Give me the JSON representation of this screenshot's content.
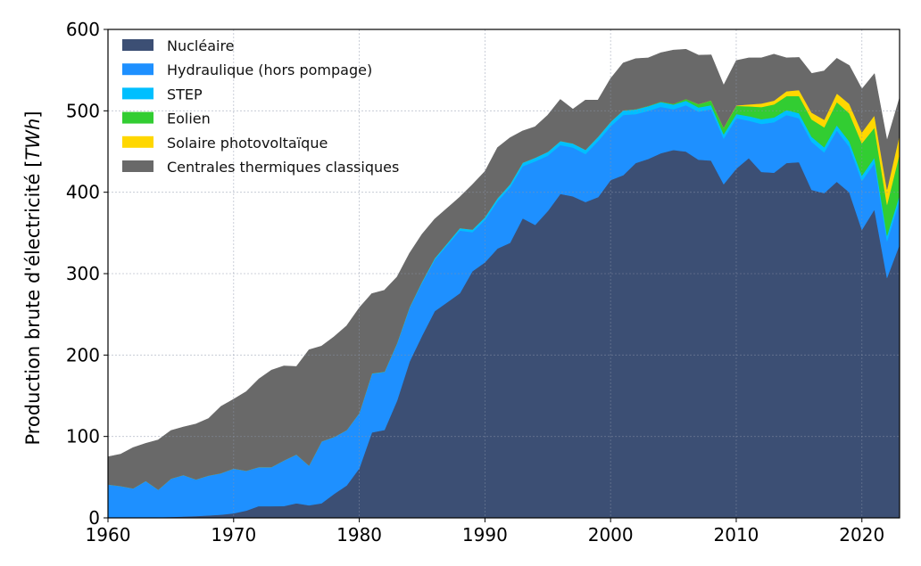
{
  "chart_data": {
    "type": "area",
    "stacked": true,
    "title": "",
    "xlabel": "",
    "ylabel": "Production brute d'électricité",
    "ylabel_unit": "TWh",
    "xlim": [
      1960,
      2023
    ],
    "ylim": [
      0,
      600
    ],
    "xticks": [
      1960,
      1970,
      1980,
      1990,
      2000,
      2010,
      2020
    ],
    "yticks": [
      0,
      100,
      200,
      300,
      400,
      500,
      600
    ],
    "grid": true,
    "legend_position": "top-left",
    "x": [
      1960,
      1961,
      1962,
      1963,
      1964,
      1965,
      1966,
      1967,
      1968,
      1969,
      1970,
      1971,
      1972,
      1973,
      1974,
      1975,
      1976,
      1977,
      1978,
      1979,
      1980,
      1981,
      1982,
      1983,
      1984,
      1985,
      1986,
      1987,
      1988,
      1989,
      1990,
      1991,
      1992,
      1993,
      1994,
      1995,
      1996,
      1997,
      1998,
      1999,
      2000,
      2001,
      2002,
      2003,
      2004,
      2005,
      2006,
      2007,
      2008,
      2009,
      2010,
      2011,
      2012,
      2013,
      2014,
      2015,
      2016,
      2017,
      2018,
      2019,
      2020,
      2021,
      2022,
      2023
    ],
    "series": [
      {
        "name": "Nucléaire",
        "color": "#3c4f74",
        "values": [
          0.1,
          0.2,
          0.3,
          0.5,
          0.8,
          1.2,
          1.7,
          2.3,
          3.0,
          4.0,
          5.7,
          9.0,
          14.5,
          14.4,
          14.6,
          18.0,
          15.5,
          18.0,
          29.5,
          40.0,
          61.0,
          105.0,
          108.0,
          144.0,
          192.0,
          224.0,
          254.0,
          265.0,
          276.0,
          303.0,
          314.0,
          331.0,
          338.0,
          368.0,
          360.0,
          377.0,
          398.0,
          395.0,
          388.0,
          394.0,
          415.0,
          421.0,
          436.0,
          441.0,
          448.0,
          452.0,
          450.0,
          440.0,
          439.0,
          410.0,
          429.0,
          442.0,
          425.0,
          424.0,
          436.0,
          437.0,
          403.0,
          399.0,
          413.0,
          400.0,
          354.0,
          379.0,
          295.0,
          336.0
        ]
      },
      {
        "name": "Hydraulique (hors pompage)",
        "color": "#1e90ff",
        "values": [
          41.0,
          39.0,
          36.0,
          45.0,
          34.0,
          47.0,
          51.0,
          45.0,
          49.0,
          51.0,
          55.0,
          49.0,
          48.0,
          48.0,
          56.0,
          60.0,
          49.0,
          76.0,
          70.0,
          68.0,
          68.0,
          72.0,
          71.0,
          70.0,
          66.0,
          65.0,
          63.0,
          70.0,
          77.0,
          48.0,
          52.0,
          58.0,
          68.0,
          64.0,
          78.0,
          68.0,
          60.0,
          60.0,
          59.0,
          69.0,
          66.0,
          74.0,
          60.0,
          59.0,
          57.0,
          50.0,
          57.0,
          59.0,
          63.0,
          56.0,
          62.0,
          46.0,
          59.0,
          62.0,
          59.0,
          54.0,
          59.0,
          50.0,
          63.0,
          56.0,
          60.0,
          57.0,
          45.0,
          54.0
        ]
      },
      {
        "name": "STEP",
        "color": "#00bfff",
        "values": [
          0,
          0,
          0,
          0,
          0,
          0,
          0,
          0,
          0,
          0,
          0,
          0,
          0,
          0,
          0,
          0,
          0,
          0,
          0,
          0,
          0,
          0.5,
          0.6,
          0.8,
          1.0,
          1.5,
          2.0,
          2.5,
          3.0,
          3.2,
          3.5,
          3.8,
          4.0,
          4.3,
          4.5,
          4.7,
          5.0,
          5.0,
          5.2,
          5.3,
          5.5,
          5.6,
          5.8,
          5.7,
          5.8,
          5.6,
          5.4,
          5.2,
          5.0,
          5.3,
          5.2,
          5.5,
          5.8,
          5.9,
          6.0,
          6.1,
          6.2,
          6.3,
          6.4,
          6.5,
          6.6,
          6.7,
          6.8,
          6.9
        ]
      },
      {
        "name": "Eolien",
        "color": "#32cd32",
        "values": [
          0,
          0,
          0,
          0,
          0,
          0,
          0,
          0,
          0,
          0,
          0,
          0,
          0,
          0,
          0,
          0,
          0,
          0,
          0,
          0,
          0,
          0,
          0,
          0,
          0,
          0,
          0,
          0,
          0,
          0,
          0,
          0,
          0,
          0,
          0,
          0,
          0,
          0,
          0,
          0,
          0.1,
          0.1,
          0.3,
          0.4,
          0.6,
          1.0,
          2.2,
          4.0,
          5.7,
          7.9,
          9.9,
          12.1,
          14.9,
          16.0,
          17.2,
          21.1,
          21.4,
          24.6,
          28.5,
          34.6,
          39.7,
          36.8,
          38.1,
          50.8
        ]
      },
      {
        "name": "Solaire photovoltaïque",
        "color": "#ffd700",
        "values": [
          0,
          0,
          0,
          0,
          0,
          0,
          0,
          0,
          0,
          0,
          0,
          0,
          0,
          0,
          0,
          0,
          0,
          0,
          0,
          0,
          0,
          0,
          0,
          0,
          0,
          0,
          0,
          0,
          0,
          0,
          0,
          0,
          0,
          0,
          0,
          0,
          0,
          0,
          0,
          0,
          0,
          0,
          0,
          0,
          0,
          0,
          0,
          0.1,
          0.1,
          0.2,
          0.6,
          2.4,
          4.4,
          4.7,
          5.9,
          7.4,
          8.3,
          9.2,
          10.6,
          11.6,
          13.4,
          15.1,
          18.6,
          23.3
        ]
      },
      {
        "name": "Centrales thermiques classiques",
        "color": "#696969",
        "values": [
          34.0,
          39.0,
          50.0,
          46.0,
          61.0,
          59.0,
          59.0,
          68.0,
          70.0,
          82.0,
          85.0,
          97.0,
          108.0,
          119.0,
          116.0,
          108.0,
          142.0,
          117.0,
          123.0,
          128.0,
          129.0,
          98.0,
          100.0,
          81.0,
          66.0,
          58.0,
          48.0,
          43.0,
          38.0,
          55.0,
          56.0,
          62.0,
          57.0,
          39.0,
          38.0,
          45.0,
          51.0,
          42.0,
          61.0,
          45.0,
          53.0,
          58.0,
          62.0,
          59.0,
          60.0,
          66.0,
          61.0,
          60.0,
          56.0,
          52.0,
          55.0,
          57.0,
          56.0,
          57.0,
          41.0,
          40.0,
          48.0,
          60.0,
          43.0,
          47.0,
          53.0,
          51.0,
          60.0,
          45.0
        ]
      }
    ]
  }
}
